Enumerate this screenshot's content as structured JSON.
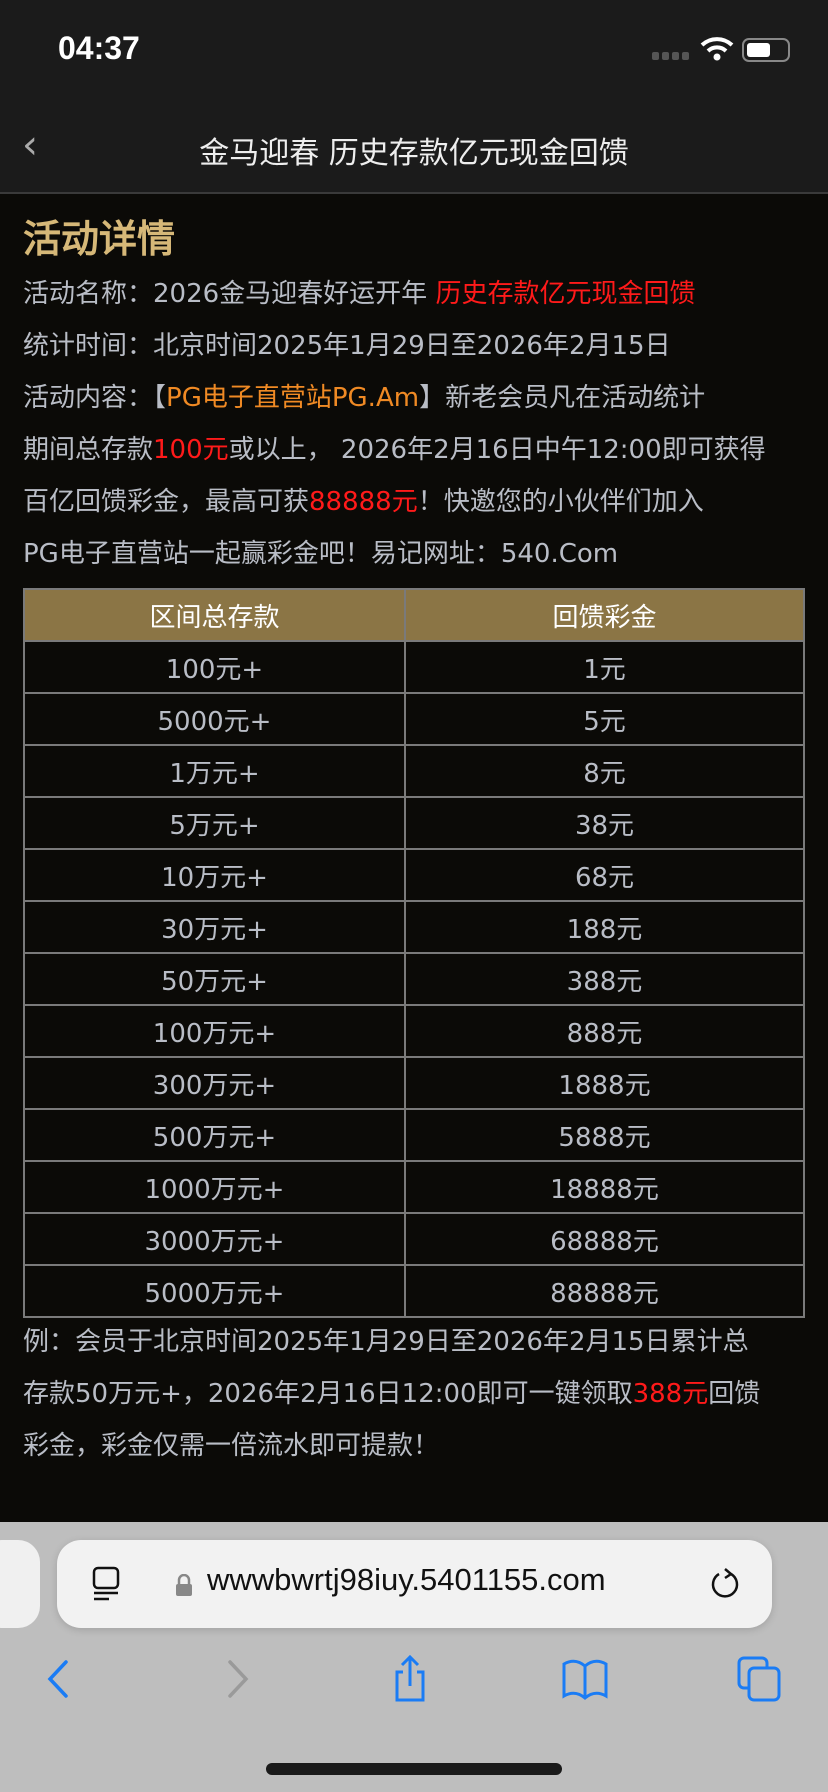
{
  "status": {
    "time": "04:37"
  },
  "nav": {
    "back_icon": "chevron-left-icon",
    "title": "金马迎春 历史存款亿元现金回馈"
  },
  "content": {
    "heading": "活动详情",
    "name_label": "活动名称：",
    "name_text": "2026金马迎春好运开年 ",
    "name_highlight": "历史存款亿元现金回馈",
    "time_label": "统计时间：",
    "time_text": "北京时间2025年1月29日至2026年2月15日",
    "desc_label": "活动内容：",
    "desc_bracket_open": "【",
    "desc_site": "PG电子直营站PG.Am",
    "desc_bracket_close": "】",
    "desc_1": "新老会员凡在活动统计",
    "desc_2a": "期间总存款",
    "desc_2b": "100元",
    "desc_2c": "或以上， 2026年2月16日中午12:00即可获得",
    "desc_3a": "百亿回馈彩金，最高可获",
    "desc_3b": "88888元",
    "desc_3c": "！快邀您的小伙伴们加入",
    "desc_4": "PG电子直营站一起赢彩金吧！易记网址：540.Com"
  },
  "table": {
    "headers": [
      "区间总存款",
      "回馈彩金"
    ],
    "rows": [
      [
        "100元+",
        "1元"
      ],
      [
        "5000元+",
        "5元"
      ],
      [
        "1万元+",
        "8元"
      ],
      [
        "5万元+",
        "38元"
      ],
      [
        "10万元+",
        "68元"
      ],
      [
        "30万元+",
        "188元"
      ],
      [
        "50万元+",
        "388元"
      ],
      [
        "100万元+",
        "888元"
      ],
      [
        "300万元+",
        "1888元"
      ],
      [
        "500万元+",
        "5888元"
      ],
      [
        "1000万元+",
        "18888元"
      ],
      [
        "3000万元+",
        "68888元"
      ],
      [
        "5000万元+",
        "88888元"
      ]
    ]
  },
  "example": {
    "line1": "例：会员于北京时间2025年1月29日至2026年2月15日累计总",
    "line2a": "存款50万元+，2026年2月16日12:00即可一键领取",
    "line2b": "388元",
    "line2c": "回馈",
    "line3": "彩金，彩金仅需一倍流水即可提款！"
  },
  "browser": {
    "url": "wwwbwrtj98iuy.5401155.com",
    "accent": "#1a7cf5"
  },
  "colors": {
    "heading": "#d6b878",
    "highlight": "#ff1a1a",
    "site": "#f08a24",
    "table_header": "#8b7545"
  }
}
